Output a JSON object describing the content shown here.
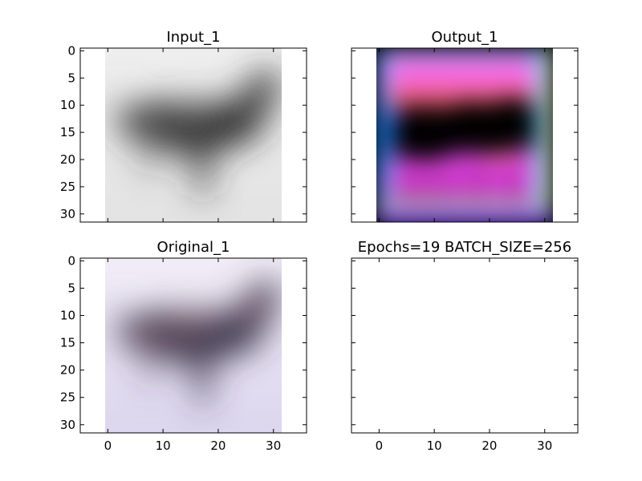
{
  "chart_data": [
    {
      "type": "image",
      "title": "Input_1",
      "xlim": [
        -5,
        36
      ],
      "ylim": [
        31.5,
        -0.5
      ],
      "xticks": [
        0,
        10,
        20,
        30
      ],
      "yticks": [
        0,
        5,
        10,
        15,
        20,
        25,
        30
      ],
      "show_xtick_labels": false,
      "show_ytick_labels": true,
      "image_extent": [
        -0.5,
        31.5,
        31.5,
        -0.5
      ],
      "colormap": "gray",
      "content": "airplane"
    },
    {
      "type": "image",
      "title": "Output_1",
      "xlim": [
        -5,
        36
      ],
      "ylim": [
        31.5,
        -0.5
      ],
      "xticks": [
        0,
        10,
        20,
        30
      ],
      "yticks": [
        0,
        5,
        10,
        15,
        20,
        25,
        30
      ],
      "show_xtick_labels": false,
      "show_ytick_labels": false,
      "image_extent": [
        -0.5,
        31.5,
        31.5,
        -0.5
      ],
      "colormap": "rgb",
      "content": "reconstruction"
    },
    {
      "type": "image",
      "title": "Original_1",
      "xlim": [
        -5,
        36
      ],
      "ylim": [
        31.5,
        -0.5
      ],
      "xticks": [
        0,
        10,
        20,
        30
      ],
      "yticks": [
        0,
        5,
        10,
        15,
        20,
        25,
        30
      ],
      "show_xtick_labels": true,
      "show_ytick_labels": true,
      "image_extent": [
        -0.5,
        31.5,
        31.5,
        -0.5
      ],
      "colormap": "rgb",
      "content": "airplane"
    },
    {
      "type": "image",
      "title": "Epochs=19 BATCH_SIZE=256",
      "xlim": [
        -5,
        36
      ],
      "ylim": [
        31.5,
        -0.5
      ],
      "xticks": [
        0,
        10,
        20,
        30
      ],
      "yticks": [
        0,
        5,
        10,
        15,
        20,
        25,
        30
      ],
      "show_xtick_labels": true,
      "show_ytick_labels": false,
      "image_extent": null,
      "colormap": null,
      "content": "empty"
    }
  ]
}
